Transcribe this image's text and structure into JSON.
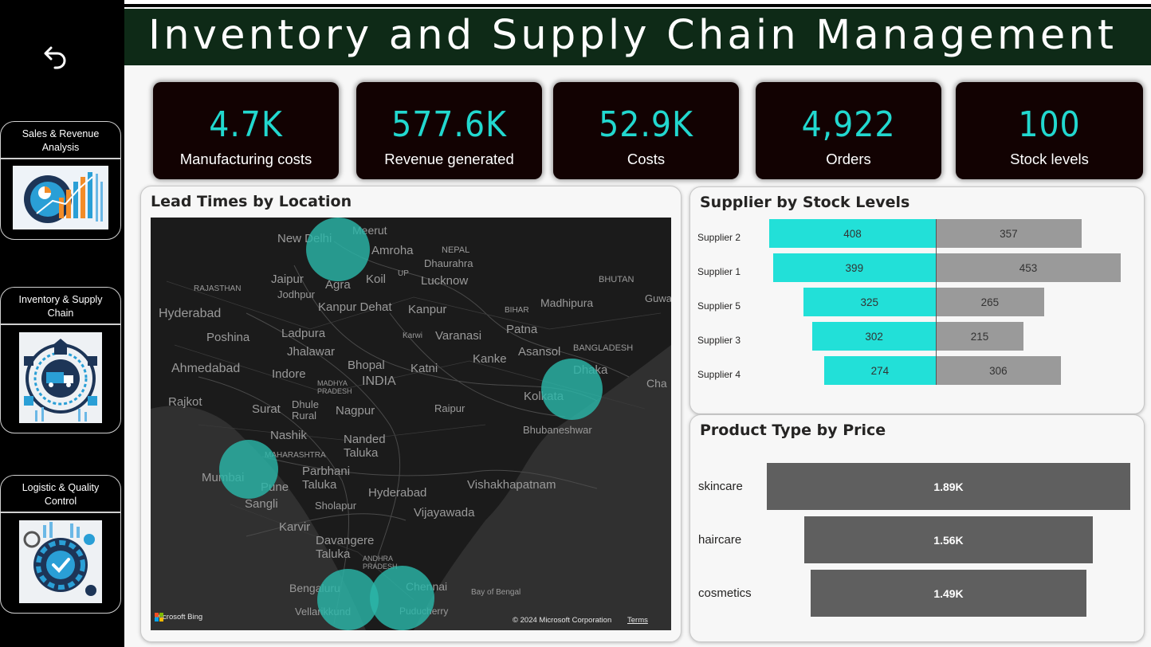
{
  "header": {
    "title": "Inventory and Supply Chain Management"
  },
  "sidebar": {
    "back_icon": "back-arrow-icon",
    "nav": [
      {
        "label": "Sales & Revenue Analysis",
        "icon": "sales-analytics-illustration"
      },
      {
        "label": "Inventory & Supply Chain",
        "icon": "supply-chain-illustration"
      },
      {
        "label": "Logistic & Quality Control",
        "icon": "quality-gear-illustration"
      }
    ]
  },
  "kpis": [
    {
      "value": "4.7K",
      "label": "Manufacturing costs"
    },
    {
      "value": "577.6K",
      "label": "Revenue generated"
    },
    {
      "value": "52.9K",
      "label": "Costs"
    },
    {
      "value": "4,922",
      "label": "Orders"
    },
    {
      "value": "100",
      "label": "Stock levels"
    }
  ],
  "lead_times": {
    "title": "Lead Times by Location",
    "places": [
      "New Delhi",
      "Meerut",
      "Amroha",
      "NEPAL",
      "Dhaurahra",
      "RAJASTHAN",
      "Jaipur",
      "UP",
      "Lucknow",
      "BHUTAN",
      "Jodhpur",
      "Agra",
      "Koil",
      "Hyderabad",
      "Kanpur Dehat",
      "Kanpur",
      "BIHAR",
      "Madhipura",
      "Ladpura",
      "Patna",
      "Poshina",
      "Jhalawar",
      "Varanasi",
      "Karwi",
      "Asansol",
      "BANGLADESH",
      "Kanke",
      "Ahmedabad",
      "Indore",
      "Bhopal",
      "Katni",
      "Dhaka",
      "MADHYA PRADESH",
      "INDIA",
      "Kolkata",
      "Rajkot",
      "Surat",
      "Dhule Rural",
      "Nagpur",
      "Raipur",
      "Bhubaneshwar",
      "Nashik",
      "Nanded Taluka",
      "MAHARASHTRA",
      "Mumbai",
      "Parbhani Taluka",
      "Pune",
      "Sangli",
      "Hyderabad",
      "Vishakhapatnam",
      "Sholapur",
      "Vijayawada",
      "Karvir",
      "Davangere Taluka",
      "ANDHRA PRADESH",
      "Bengaluru",
      "Chennai",
      "Vellarikkund",
      "Puducherry",
      "Bay of Bengal",
      "Guwa",
      "Cha"
    ],
    "bubbles": [
      "Delhi",
      "Kolkata",
      "Mumbai",
      "Bengaluru",
      "Chennai"
    ],
    "bing": "Microsoft Bing",
    "copyright": "© 2024 Microsoft Corporation",
    "terms": "Terms",
    "accent": "#2bb6a8"
  },
  "supplier": {
    "title": "Supplier by Stock Levels",
    "colors": {
      "left": "#22e0d8",
      "right": "#9a9a9a"
    },
    "rows": [
      {
        "name": "Supplier 2",
        "left": 408,
        "right": 357
      },
      {
        "name": "Supplier 1",
        "left": 399,
        "right": 453
      },
      {
        "name": "Supplier 5",
        "left": 325,
        "right": 265
      },
      {
        "name": "Supplier 3",
        "left": 302,
        "right": 215
      },
      {
        "name": "Supplier 4",
        "left": 274,
        "right": 306
      }
    ]
  },
  "product": {
    "title": "Product Type by Price",
    "color": "#5f5f5f",
    "rows": [
      {
        "name": "skincare",
        "value": 1890,
        "label": "1.89K"
      },
      {
        "name": "haircare",
        "value": 1560,
        "label": "1.56K"
      },
      {
        "name": "cosmetics",
        "value": 1490,
        "label": "1.49K"
      }
    ]
  }
}
